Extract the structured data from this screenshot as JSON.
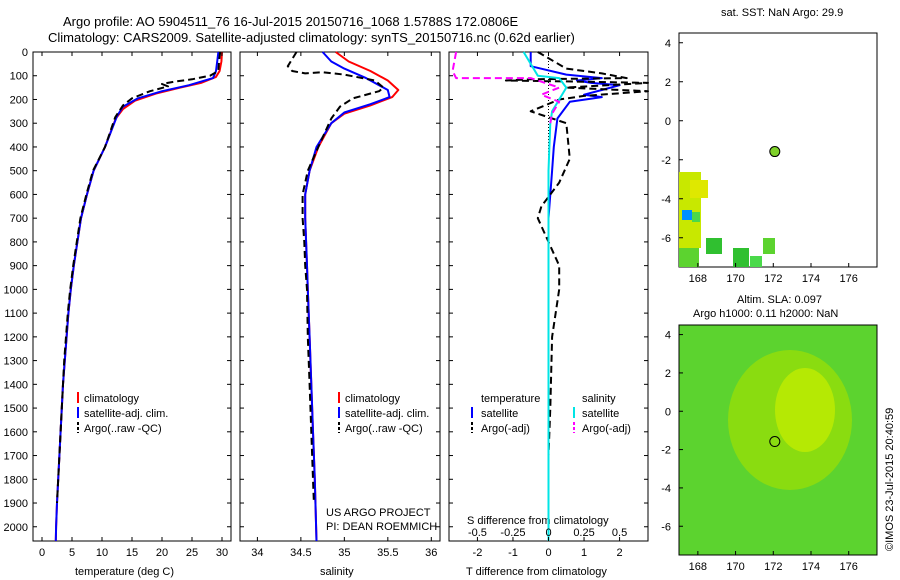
{
  "header": {
    "line1": "Argo profile: AO 5904511_76 16-Jul-2015 20150716_1068 1.5788S 172.0806E",
    "line2": "Climatology: CARS2009. Satellite-adjusted climatology: synTS_20150716.nc (0.62d earlier)"
  },
  "colors": {
    "climatology": "#ff0000",
    "satellite": "#0000ff",
    "argo": "#000000",
    "sal_satellite": "#00e5e5",
    "sal_argo": "#ff00ff"
  },
  "depth_axis": {
    "ticks": [
      0,
      100,
      200,
      300,
      400,
      500,
      600,
      700,
      800,
      900,
      1000,
      1100,
      1200,
      1300,
      1400,
      1500,
      1600,
      1700,
      1800,
      1900,
      2000
    ],
    "range": [
      0,
      2060
    ]
  },
  "chart_data": [
    {
      "name": "temperature",
      "type": "line",
      "xlabel": "temperature (deg C)",
      "xlim": [
        -1.5,
        31.5
      ],
      "xticks": [
        0,
        5,
        10,
        15,
        20,
        25,
        30
      ],
      "legend": [
        "climatology",
        "satellite-adj. clim.",
        "Argo(..raw -QC)"
      ],
      "series": [
        {
          "name": "climatology",
          "color": "#ff0000",
          "points": [
            [
              30,
              0
            ],
            [
              29.9,
              40
            ],
            [
              29.6,
              80
            ],
            [
              29,
              105
            ],
            [
              26.5,
              130
            ],
            [
              23,
              150
            ],
            [
              19,
              175
            ],
            [
              15.5,
              205
            ],
            [
              13.5,
              240
            ],
            [
              12.3,
              280
            ],
            [
              10.5,
              400
            ],
            [
              8.6,
              500
            ],
            [
              7.5,
              600
            ],
            [
              6.5,
              700
            ],
            [
              5.9,
              800
            ],
            [
              5.3,
              900
            ],
            [
              4.8,
              1000
            ],
            [
              4.4,
              1100
            ],
            [
              4.1,
              1200
            ],
            [
              3.8,
              1300
            ],
            [
              3.5,
              1400
            ],
            [
              3.3,
              1500
            ],
            [
              3.1,
              1600
            ],
            [
              2.9,
              1700
            ],
            [
              2.7,
              1800
            ],
            [
              2.5,
              1900
            ],
            [
              2.35,
              2000
            ],
            [
              2.3,
              2060
            ]
          ]
        },
        {
          "name": "satellite",
          "color": "#0000ff",
          "points": [
            [
              29.4,
              0
            ],
            [
              29.2,
              40
            ],
            [
              29,
              80
            ],
            [
              28.5,
              110
            ],
            [
              24.5,
              140
            ],
            [
              20,
              165
            ],
            [
              16,
              195
            ],
            [
              13.5,
              230
            ],
            [
              12.5,
              270
            ],
            [
              10.5,
              400
            ],
            [
              8.6,
              500
            ],
            [
              7.5,
              600
            ],
            [
              6.5,
              700
            ],
            [
              5.9,
              800
            ],
            [
              5.3,
              900
            ],
            [
              4.8,
              1000
            ],
            [
              4.4,
              1100
            ],
            [
              4.1,
              1200
            ],
            [
              3.8,
              1300
            ],
            [
              3.5,
              1400
            ],
            [
              3.3,
              1500
            ],
            [
              3.1,
              1600
            ],
            [
              2.9,
              1700
            ],
            [
              2.7,
              1800
            ],
            [
              2.5,
              1900
            ],
            [
              2.35,
              2000
            ],
            [
              2.3,
              2060
            ]
          ]
        },
        {
          "name": "argo",
          "color": "#000000",
          "dashed": true,
          "points": [
            [
              29.7,
              0
            ],
            [
              29.5,
              40
            ],
            [
              29.4,
              80
            ],
            [
              28,
              100
            ],
            [
              25,
              115
            ],
            [
              22,
              125
            ],
            [
              20,
              135
            ],
            [
              21,
              145
            ],
            [
              18,
              165
            ],
            [
              15,
              195
            ],
            [
              13.5,
              225
            ],
            [
              12.2,
              275
            ],
            [
              10.5,
              400
            ],
            [
              8.5,
              500
            ],
            [
              7.4,
              600
            ],
            [
              6.4,
              700
            ],
            [
              5.8,
              800
            ],
            [
              5.2,
              900
            ],
            [
              4.7,
              1000
            ],
            [
              4.3,
              1100
            ],
            [
              4,
              1200
            ],
            [
              3.7,
              1300
            ],
            [
              3.5,
              1400
            ],
            [
              3.3,
              1500
            ],
            [
              3.1,
              1600
            ],
            [
              2.9,
              1700
            ],
            [
              2.7,
              1800
            ],
            [
              2.5,
              1900
            ]
          ]
        }
      ]
    },
    {
      "name": "salinity",
      "type": "line",
      "xlabel": "salinity",
      "xlim": [
        33.8,
        36.1
      ],
      "xticks": [
        34,
        34.5,
        35,
        35.5,
        36
      ],
      "legend": [
        "climatology",
        "satellite-adj. clim.",
        "Argo(..raw -QC)"
      ],
      "annotation": [
        "US ARGO PROJECT",
        "PI: DEAN ROEMMICH"
      ],
      "series": [
        {
          "name": "climatology",
          "color": "#ff0000",
          "points": [
            [
              34.9,
              0
            ],
            [
              35.05,
              40
            ],
            [
              35.3,
              80
            ],
            [
              35.5,
              120
            ],
            [
              35.62,
              160
            ],
            [
              35.55,
              190
            ],
            [
              35.3,
              225
            ],
            [
              35,
              260
            ],
            [
              34.85,
              300
            ],
            [
              34.7,
              400
            ],
            [
              34.6,
              500
            ],
            [
              34.55,
              600
            ],
            [
              34.55,
              700
            ],
            [
              34.56,
              800
            ],
            [
              34.57,
              900
            ],
            [
              34.58,
              1000
            ],
            [
              34.6,
              1200
            ],
            [
              34.62,
              1400
            ],
            [
              34.64,
              1600
            ],
            [
              34.66,
              1800
            ],
            [
              34.68,
              2060
            ]
          ]
        },
        {
          "name": "satellite",
          "color": "#0000ff",
          "points": [
            [
              34.75,
              0
            ],
            [
              34.85,
              40
            ],
            [
              35,
              70
            ],
            [
              35.25,
              110
            ],
            [
              35.5,
              160
            ],
            [
              35.52,
              190
            ],
            [
              35.3,
              220
            ],
            [
              35,
              255
            ],
            [
              34.85,
              300
            ],
            [
              34.68,
              400
            ],
            [
              34.6,
              500
            ],
            [
              34.55,
              600
            ],
            [
              34.55,
              700
            ],
            [
              34.56,
              800
            ],
            [
              34.57,
              900
            ],
            [
              34.58,
              1000
            ],
            [
              34.6,
              1200
            ],
            [
              34.62,
              1400
            ],
            [
              34.64,
              1600
            ],
            [
              34.66,
              1800
            ],
            [
              34.68,
              2060
            ]
          ]
        },
        {
          "name": "argo",
          "color": "#000000",
          "dashed": true,
          "points": [
            [
              34.45,
              0
            ],
            [
              34.35,
              60
            ],
            [
              34.4,
              80
            ],
            [
              34.55,
              90
            ],
            [
              34.75,
              85
            ],
            [
              35,
              95
            ],
            [
              35.35,
              120
            ],
            [
              35.45,
              150
            ],
            [
              35.4,
              165
            ],
            [
              35.1,
              195
            ],
            [
              34.95,
              230
            ],
            [
              34.85,
              280
            ],
            [
              34.7,
              400
            ],
            [
              34.58,
              500
            ],
            [
              34.52,
              600
            ],
            [
              34.52,
              700
            ],
            [
              34.54,
              800
            ],
            [
              34.55,
              900
            ],
            [
              34.57,
              1000
            ],
            [
              34.58,
              1200
            ],
            [
              34.6,
              1400
            ],
            [
              34.62,
              1600
            ],
            [
              34.64,
              1800
            ],
            [
              34.65,
              1900
            ]
          ]
        }
      ]
    },
    {
      "name": "difference",
      "type": "line",
      "xlabel": "T difference from climatology",
      "xlabel_top": "S difference from climatology",
      "xlim": [
        -2.8,
        2.8
      ],
      "xticks": [
        -2,
        -1,
        0,
        1,
        2
      ],
      "sticks": [
        "-0.5",
        "-0.25",
        "0",
        "0.25",
        "0.5"
      ],
      "legend_left": [
        "temperature",
        "satellite",
        "Argo(-adj)"
      ],
      "legend_right": [
        "salinity",
        "satellite",
        "Argo(-adj)"
      ],
      "series": [
        {
          "name": "T satellite",
          "color": "#0000ff",
          "points": [
            [
              -0.5,
              0
            ],
            [
              -0.5,
              60
            ],
            [
              0.5,
              95
            ],
            [
              1.5,
              110
            ],
            [
              0.8,
              120
            ],
            [
              1.2,
              130
            ],
            [
              2,
              140
            ],
            [
              1.5,
              160
            ],
            [
              1,
              180
            ],
            [
              1.5,
              190
            ],
            [
              0.6,
              210
            ],
            [
              0.25,
              280
            ],
            [
              0.15,
              400
            ],
            [
              0.1,
              500
            ],
            [
              0,
              700
            ],
            [
              0,
              2060
            ]
          ]
        },
        {
          "name": "T argo",
          "color": "#000000",
          "dashed": true,
          "points": [
            [
              -0.3,
              0
            ],
            [
              0.5,
              70
            ],
            [
              1.5,
              90
            ],
            [
              2.2,
              110
            ],
            [
              -0.5,
              115
            ],
            [
              -1.2,
              120
            ],
            [
              1,
              125
            ],
            [
              2.8,
              130
            ],
            [
              0.5,
              150
            ],
            [
              2.8,
              165
            ],
            [
              1,
              185
            ],
            [
              0.3,
              200
            ],
            [
              -0.5,
              250
            ],
            [
              0.5,
              300
            ],
            [
              0.6,
              450
            ],
            [
              0.3,
              550
            ],
            [
              -0.2,
              650
            ],
            [
              -0.3,
              700
            ],
            [
              0,
              800
            ],
            [
              0.3,
              900
            ],
            [
              0.3,
              1000
            ],
            [
              0.1,
              1200
            ],
            [
              0.05,
              1500
            ],
            [
              0,
              1700
            ],
            [
              0,
              1900
            ]
          ]
        },
        {
          "name": "S satellite",
          "color": "#00e5e5",
          "points": [
            [
              -0.7,
              0
            ],
            [
              -0.5,
              50
            ],
            [
              -0.3,
              100
            ],
            [
              0.3,
              110
            ],
            [
              0.5,
              150
            ],
            [
              0.3,
              200
            ],
            [
              0.1,
              250
            ],
            [
              0.05,
              300
            ],
            [
              0,
              500
            ],
            [
              0,
              2060
            ]
          ]
        },
        {
          "name": "S argo",
          "color": "#ff00ff",
          "dashed": true,
          "points": [
            [
              -2.6,
              0
            ],
            [
              -2.7,
              80
            ],
            [
              -2.6,
              110
            ],
            [
              -0.5,
              110
            ],
            [
              0.3,
              150
            ],
            [
              -0.2,
              180
            ],
            [
              0.3,
              210
            ],
            [
              0.1,
              260
            ],
            [
              0.05,
              300
            ]
          ]
        }
      ]
    },
    {
      "name": "sst_map",
      "type": "heatmap",
      "title": "sat. SST: NaN Argo: 29.9",
      "xticks": [
        168,
        170,
        172,
        174,
        176
      ],
      "yticks": [
        4,
        2,
        0,
        -2,
        -4,
        -6
      ],
      "xlim": [
        167,
        177.5
      ],
      "ylim": [
        -7.5,
        4.5
      ],
      "argo_position": [
        172.08,
        -1.58
      ]
    },
    {
      "name": "sla_map",
      "type": "heatmap",
      "title_line1": "Altim. SLA: 0.097",
      "title_line2": "Argo h1000: 0.11 h2000: NaN",
      "xticks": [
        168,
        170,
        172,
        174,
        176
      ],
      "yticks": [
        4,
        2,
        0,
        -2,
        -4,
        -6
      ],
      "xlim": [
        167,
        177.5
      ],
      "ylim": [
        -7.5,
        4.5
      ],
      "argo_position": [
        172.08,
        -1.58
      ]
    }
  ],
  "footer": {
    "credit": "©IMOS 23-Jul-2015 20:40:59"
  }
}
